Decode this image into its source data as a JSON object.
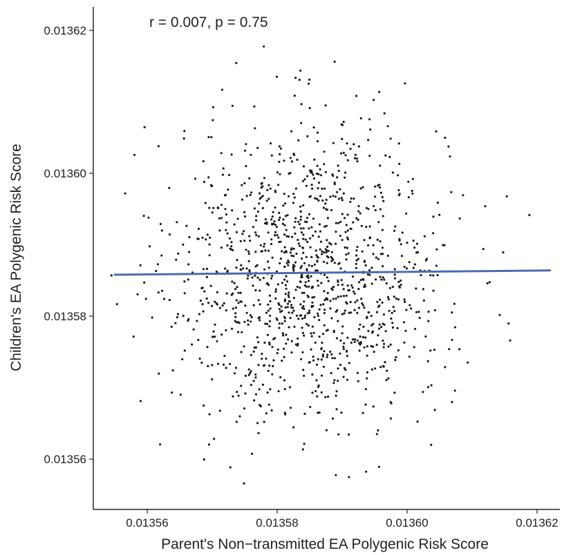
{
  "chart_data": {
    "type": "scatter",
    "title": "",
    "annotation": "r = 0.007, p = 0.75",
    "xlabel": "Parent's Non−transmitted EA Polygenic Risk Score",
    "ylabel": "Children's EA Polygenic Risk Score",
    "xlim": [
      0.013552,
      0.013623
    ],
    "ylim": [
      0.013553,
      0.013624
    ],
    "xticks": [
      0.01356,
      0.01358,
      0.0136,
      0.01362
    ],
    "xtick_labels": [
      "0.01356",
      "0.01358",
      "0.01360",
      "0.01362"
    ],
    "yticks": [
      0.01356,
      0.01358,
      0.0136,
      0.01362
    ],
    "ytick_labels": [
      "0.01356",
      "0.01358",
      "0.01360",
      "0.01362"
    ],
    "point_count": 1250,
    "x_mean": 0.013585,
    "x_sd": 1.05e-05,
    "y_mean": 0.013586,
    "y_sd": 1.05e-05,
    "fit_line": {
      "x": [
        0.013555,
        0.013622
      ],
      "y": [
        0.0135858,
        0.0135864
      ]
    },
    "point_color": "#1a1a1a",
    "line_color": "#4a6bb0",
    "grid": false,
    "legend": "none"
  }
}
